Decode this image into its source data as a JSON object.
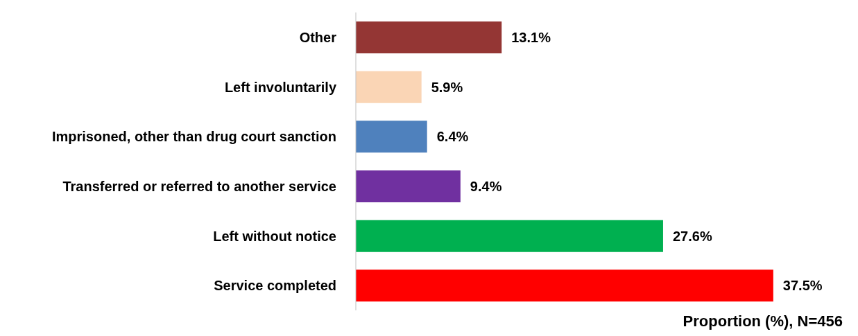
{
  "chart_data": {
    "type": "bar",
    "orientation": "horizontal",
    "xlabel": "Proportion (%), N=456",
    "categories": [
      "Other",
      "Left involuntarily",
      "Imprisoned, other than drug court sanction",
      "Transferred or referred to another service",
      "Left without notice",
      "Service completed"
    ],
    "values": [
      13.1,
      5.9,
      6.4,
      9.4,
      27.6,
      37.5
    ],
    "colors": [
      "#943634",
      "#fad5b5",
      "#4f81bd",
      "#7030a0",
      "#00b050",
      "#ff0000"
    ],
    "value_labels": [
      "13.1%",
      "5.9%",
      "6.4%",
      "9.4%",
      "27.6%",
      "37.5%"
    ]
  }
}
